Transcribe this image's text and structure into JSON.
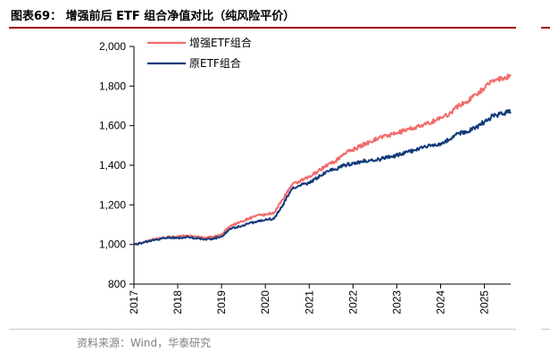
{
  "header": {
    "title": "图表69：  增强前后 ETF 组合净值对比（纯风险平价）"
  },
  "footer": {
    "source": "资料来源：Wind，华泰研究"
  },
  "colors": {
    "accent_rule": "#a00000",
    "enhanced": "#f26b6b",
    "original": "#123a7a"
  },
  "chart_data": {
    "type": "line",
    "title": "",
    "xlabel": "",
    "ylabel": "",
    "ylim": [
      800,
      2000
    ],
    "y_ticks": [
      "800",
      "1,000",
      "1,200",
      "1,400",
      "1,600",
      "1,800",
      "2,000"
    ],
    "y_tick_values": [
      800,
      1000,
      1200,
      1400,
      1600,
      1800,
      2000
    ],
    "x_ticks": [
      "2017",
      "2018",
      "2019",
      "2020",
      "2021",
      "2022",
      "2023",
      "2024",
      "2025"
    ],
    "xlim": [
      2017.0,
      2025.6
    ],
    "legend": "top-left",
    "grid": false,
    "x": [
      2017.0,
      2017.2,
      2017.4,
      2017.6,
      2017.8,
      2018.0,
      2018.2,
      2018.4,
      2018.6,
      2018.8,
      2019.0,
      2019.2,
      2019.4,
      2019.6,
      2019.8,
      2020.0,
      2020.2,
      2020.4,
      2020.6,
      2020.8,
      2021.0,
      2021.2,
      2021.4,
      2021.6,
      2021.8,
      2022.0,
      2022.2,
      2022.4,
      2022.6,
      2022.8,
      2023.0,
      2023.2,
      2023.4,
      2023.6,
      2023.8,
      2024.0,
      2024.2,
      2024.4,
      2024.6,
      2024.8,
      2025.0,
      2025.2,
      2025.4,
      2025.6
    ],
    "series": [
      {
        "name": "增强ETF组合",
        "color": "#f26b6b",
        "values": [
          1000,
          1010,
          1025,
          1032,
          1040,
          1038,
          1045,
          1040,
          1035,
          1038,
          1050,
          1095,
          1110,
          1130,
          1145,
          1150,
          1160,
          1230,
          1300,
          1320,
          1340,
          1370,
          1400,
          1420,
          1460,
          1480,
          1500,
          1520,
          1540,
          1550,
          1560,
          1580,
          1590,
          1600,
          1620,
          1640,
          1660,
          1700,
          1720,
          1760,
          1790,
          1830,
          1840,
          1850
        ]
      },
      {
        "name": "原ETF组合",
        "color": "#123a7a",
        "values": [
          1000,
          1008,
          1020,
          1028,
          1035,
          1032,
          1038,
          1032,
          1025,
          1028,
          1040,
          1080,
          1090,
          1105,
          1115,
          1125,
          1130,
          1200,
          1280,
          1300,
          1310,
          1340,
          1370,
          1380,
          1400,
          1410,
          1420,
          1425,
          1430,
          1440,
          1450,
          1465,
          1475,
          1490,
          1500,
          1510,
          1530,
          1560,
          1570,
          1590,
          1620,
          1650,
          1660,
          1670
        ]
      }
    ]
  }
}
